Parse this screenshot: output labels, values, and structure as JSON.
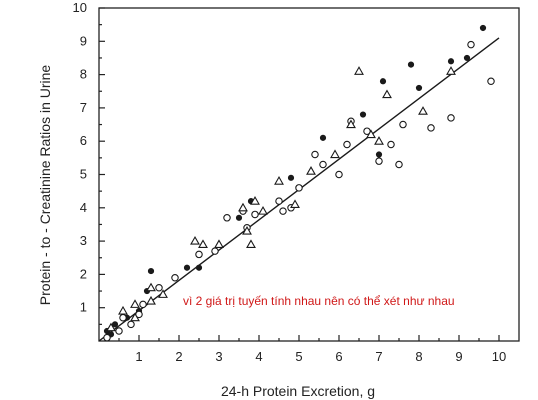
{
  "chart_data": {
    "type": "scatter",
    "xlabel": "24-h Protein Excretion, g",
    "ylabel": "Protein - to - Creatinine Ratios in Urine",
    "xlim": [
      0,
      10.5
    ],
    "ylim": [
      0,
      10
    ],
    "xticks": [
      1,
      2,
      3,
      4,
      5,
      6,
      7,
      8,
      9,
      10
    ],
    "yticks": [
      1,
      2,
      3,
      4,
      5,
      6,
      7,
      8,
      9,
      10
    ],
    "grid": false,
    "annotation": "vì 2 giá trị tuyến tính nhau nên có thể xét như nhau",
    "fit_line": {
      "x": [
        0,
        10
      ],
      "y": [
        0,
        9.1
      ]
    },
    "series": [
      {
        "marker": "filled-circle",
        "points": [
          [
            0.2,
            0.3
          ],
          [
            0.4,
            0.5
          ],
          [
            0.7,
            0.7
          ],
          [
            1.2,
            1.5
          ],
          [
            1.3,
            2.1
          ],
          [
            2.2,
            2.2
          ],
          [
            3.5,
            3.7
          ],
          [
            3.8,
            4.2
          ],
          [
            4.8,
            4.9
          ],
          [
            5.6,
            6.1
          ],
          [
            6.6,
            6.8
          ],
          [
            7.0,
            5.6
          ],
          [
            7.1,
            7.8
          ],
          [
            7.8,
            8.3
          ],
          [
            8.0,
            7.6
          ],
          [
            8.8,
            8.4
          ],
          [
            9.2,
            8.5
          ],
          [
            9.6,
            9.4
          ],
          [
            0.3,
            0.2
          ],
          [
            1.0,
            0.9
          ],
          [
            2.5,
            2.2
          ]
        ]
      },
      {
        "marker": "open-circle",
        "points": [
          [
            0.2,
            0.1
          ],
          [
            0.5,
            0.3
          ],
          [
            0.8,
            0.5
          ],
          [
            1.0,
            0.8
          ],
          [
            1.5,
            1.6
          ],
          [
            1.9,
            1.9
          ],
          [
            2.5,
            2.6
          ],
          [
            3.2,
            3.7
          ],
          [
            3.6,
            3.9
          ],
          [
            3.7,
            3.4
          ],
          [
            4.5,
            4.2
          ],
          [
            4.6,
            3.9
          ],
          [
            4.8,
            4.0
          ],
          [
            5.0,
            4.6
          ],
          [
            5.4,
            5.6
          ],
          [
            5.6,
            5.3
          ],
          [
            6.0,
            5.0
          ],
          [
            6.2,
            5.9
          ],
          [
            6.3,
            6.6
          ],
          [
            6.7,
            6.3
          ],
          [
            7.0,
            5.4
          ],
          [
            7.3,
            5.9
          ],
          [
            7.5,
            5.3
          ],
          [
            7.6,
            6.5
          ],
          [
            8.3,
            6.4
          ],
          [
            8.8,
            6.7
          ],
          [
            9.3,
            8.9
          ],
          [
            9.8,
            7.8
          ],
          [
            0.6,
            0.7
          ],
          [
            1.1,
            1.1
          ],
          [
            2.9,
            2.7
          ],
          [
            3.9,
            3.8
          ]
        ]
      },
      {
        "marker": "open-triangle",
        "points": [
          [
            0.3,
            0.4
          ],
          [
            0.6,
            0.9
          ],
          [
            0.9,
            0.7
          ],
          [
            1.3,
            1.2
          ],
          [
            1.6,
            1.4
          ],
          [
            2.4,
            3.0
          ],
          [
            2.6,
            2.9
          ],
          [
            3.0,
            2.9
          ],
          [
            3.7,
            3.3
          ],
          [
            3.8,
            2.9
          ],
          [
            4.1,
            3.9
          ],
          [
            4.5,
            4.8
          ],
          [
            4.9,
            4.1
          ],
          [
            5.3,
            5.1
          ],
          [
            5.9,
            5.6
          ],
          [
            6.3,
            6.5
          ],
          [
            6.5,
            8.1
          ],
          [
            6.8,
            6.2
          ],
          [
            7.0,
            6.0
          ],
          [
            7.2,
            7.4
          ],
          [
            8.1,
            6.9
          ],
          [
            8.8,
            8.1
          ],
          [
            0.9,
            1.1
          ],
          [
            1.3,
            1.6
          ],
          [
            3.6,
            4.0
          ],
          [
            3.9,
            4.2
          ]
        ]
      }
    ]
  }
}
